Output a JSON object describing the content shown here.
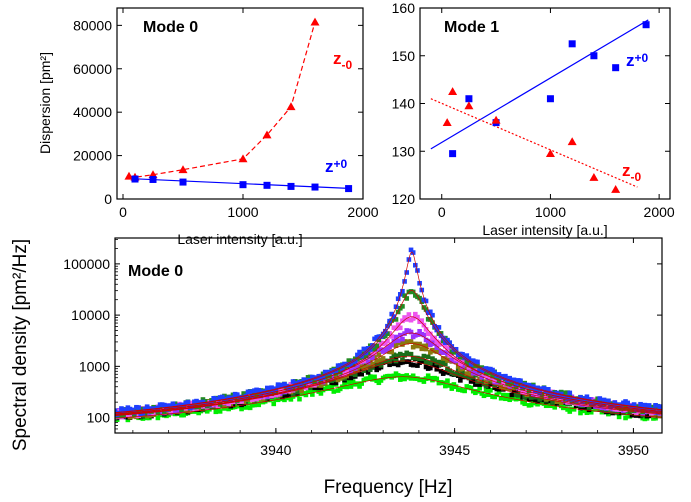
{
  "chart_data": [
    {
      "id": "p1",
      "type": "scatter",
      "title": "Mode 0",
      "xlabel": "Laser intensity [a.u.]",
      "ylabel": "Dispersion [pm²]",
      "xlim": [
        -50,
        2000
      ],
      "ylim": [
        0,
        88000
      ],
      "xticks": [
        0,
        1000,
        2000
      ],
      "yticks": [
        0,
        20000,
        40000,
        60000,
        80000
      ],
      "xtick_labels": [
        "0",
        "1000",
        "2000"
      ],
      "ytick_labels": [
        "0",
        "20000",
        "40000",
        "60000",
        "80000"
      ],
      "series": [
        {
          "name": "z-0",
          "label_main": "z",
          "label_sub": "-0",
          "color": "#ff0000",
          "marker": "triangle",
          "line": "dashed-connect",
          "x": [
            50,
            100,
            250,
            500,
            1000,
            1200,
            1400,
            1600
          ],
          "y": [
            10500,
            10000,
            11200,
            13500,
            18500,
            29500,
            42500,
            81500
          ]
        },
        {
          "name": "z+0",
          "label_main": "z",
          "label_sub": "+0",
          "color": "#0000ff",
          "marker": "square",
          "line": "solid-fit",
          "x": [
            100,
            250,
            500,
            1000,
            1200,
            1400,
            1600,
            1880
          ],
          "y": [
            9200,
            9000,
            7800,
            6600,
            6300,
            5800,
            5500,
            4800
          ],
          "fit": [
            [
              100,
              9300
            ],
            [
              1880,
              4900
            ]
          ]
        }
      ]
    },
    {
      "id": "p2",
      "type": "scatter",
      "title": "Mode 1",
      "xlabel": "Laser intensity [a.u.]",
      "ylabel": "",
      "xlim": [
        -200,
        2100
      ],
      "ylim": [
        120,
        160
      ],
      "xticks": [
        0,
        1000,
        2000
      ],
      "yticks": [
        120,
        130,
        140,
        150,
        160
      ],
      "xtick_labels": [
        "0",
        "1000",
        "2000"
      ],
      "ytick_labels": [
        "120",
        "130",
        "140",
        "150",
        "160"
      ],
      "series": [
        {
          "name": "z+0",
          "label_main": "z",
          "label_sub": "+0",
          "color": "#0000ff",
          "marker": "square",
          "line": "solid-fit",
          "x": [
            100,
            250,
            500,
            1000,
            1200,
            1400,
            1600,
            1880
          ],
          "y": [
            129.5,
            141,
            136,
            141,
            152.5,
            150,
            147.5,
            156.5
          ],
          "fit": [
            [
              -100,
              130.5
            ],
            [
              1900,
              157.5
            ]
          ]
        },
        {
          "name": "z-0",
          "label_main": "z",
          "label_sub": "-0",
          "color": "#ff0000",
          "marker": "triangle",
          "line": "dotted-fit",
          "x": [
            50,
            100,
            250,
            500,
            1000,
            1200,
            1400,
            1600
          ],
          "y": [
            136,
            142.5,
            139.5,
            136.5,
            129.5,
            132,
            124.5,
            122
          ],
          "fit": [
            [
              -100,
              141
            ],
            [
              1800,
              122.5
            ]
          ]
        }
      ]
    },
    {
      "id": "p3",
      "type": "scatter",
      "scale_y": "log",
      "title": "Mode 0",
      "xlabel": "Frequency [Hz]",
      "ylabel": "Spectral density [pm²/Hz]",
      "xlim": [
        3935.5,
        3950.8
      ],
      "ylim": [
        50,
        320000
      ],
      "xticks": [
        3940,
        3945,
        3950
      ],
      "yticks": [
        100,
        1000,
        10000,
        100000
      ],
      "xtick_labels": [
        "3940",
        "3945",
        "3950"
      ],
      "ytick_labels": [
        "100",
        "1000",
        "10000",
        "100000"
      ],
      "series": [
        {
          "color": "#00ee00",
          "peak": 350,
          "center": 3943.6,
          "width": 1.6
        },
        {
          "color": "#000000",
          "peak": 1000,
          "center": 3943.6,
          "width": 1.3
        },
        {
          "color": "#1a6e1a",
          "peak": 1300,
          "center": 3943.7,
          "width": 1.2
        },
        {
          "color": "#8a7a10",
          "peak": 2500,
          "center": 3943.8,
          "width": 0.9
        },
        {
          "color": "#9933ff",
          "peak": 4200,
          "center": 3943.8,
          "width": 0.75
        },
        {
          "color": "#ee55ee",
          "peak": 9000,
          "center": 3943.8,
          "width": 0.5
        },
        {
          "color": "#228b22",
          "peak": 30000,
          "center": 3943.8,
          "width": 0.3
        },
        {
          "color": "#1f3fff",
          "peak": 170000,
          "center": 3943.8,
          "width": 0.13
        }
      ],
      "fit_color": "#cc0000"
    }
  ]
}
